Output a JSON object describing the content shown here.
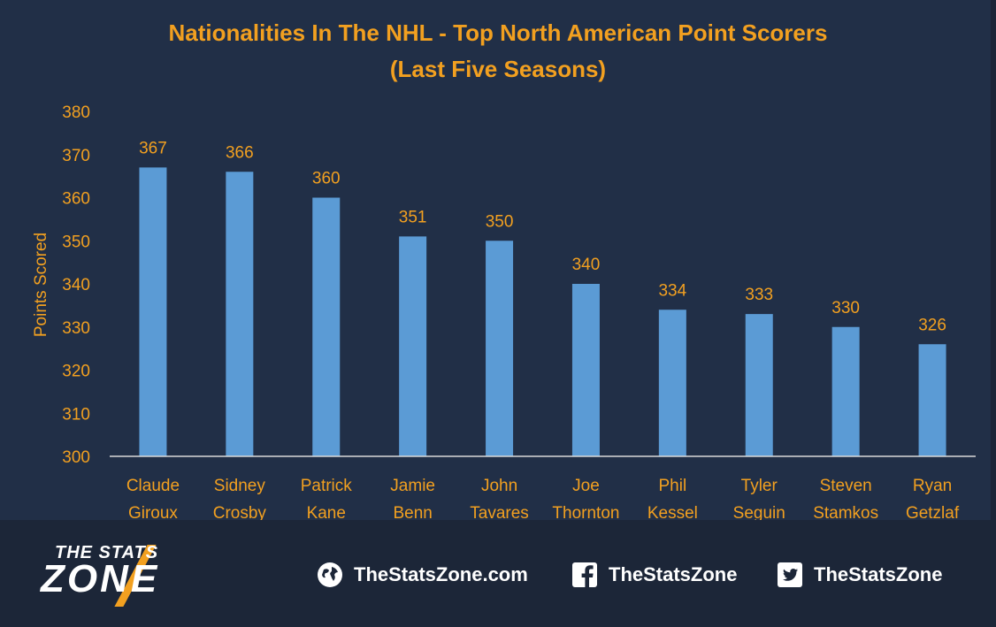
{
  "chart_data": {
    "type": "bar",
    "title": "Nationalities  In The NHL - Top North American Point Scorers",
    "subtitle": "(Last Five Seasons)",
    "ylabel": "Points Scored",
    "xlabel": "",
    "ylim": [
      300,
      380
    ],
    "yticks": [
      300,
      310,
      320,
      330,
      340,
      350,
      360,
      370,
      380
    ],
    "grid": false,
    "categories": [
      [
        "Claude",
        "Giroux"
      ],
      [
        "Sidney",
        "Crosby"
      ],
      [
        "Patrick",
        "Kane"
      ],
      [
        "Jamie",
        "Benn"
      ],
      [
        "John",
        "Tavares"
      ],
      [
        "Joe",
        "Thornton"
      ],
      [
        "Phil",
        "Kessel"
      ],
      [
        "Tyler",
        "Seguin"
      ],
      [
        "Steven",
        "Stamkos"
      ],
      [
        "Ryan",
        "Getzlaf"
      ]
    ],
    "values": [
      367,
      366,
      360,
      351,
      350,
      340,
      334,
      333,
      330,
      326
    ],
    "colors": {
      "bar": "#5b9bd5",
      "text": "#f2a020",
      "axis": "#d9d9d9",
      "background": "#212f47"
    }
  },
  "footer": {
    "logo_top": "THE STATS",
    "logo_bottom": "ZONE",
    "website": "TheStatsZone.com",
    "facebook": "TheStatsZone",
    "twitter": "TheStatsZone",
    "icons": [
      "globe-icon",
      "facebook-icon",
      "twitter-icon"
    ]
  }
}
